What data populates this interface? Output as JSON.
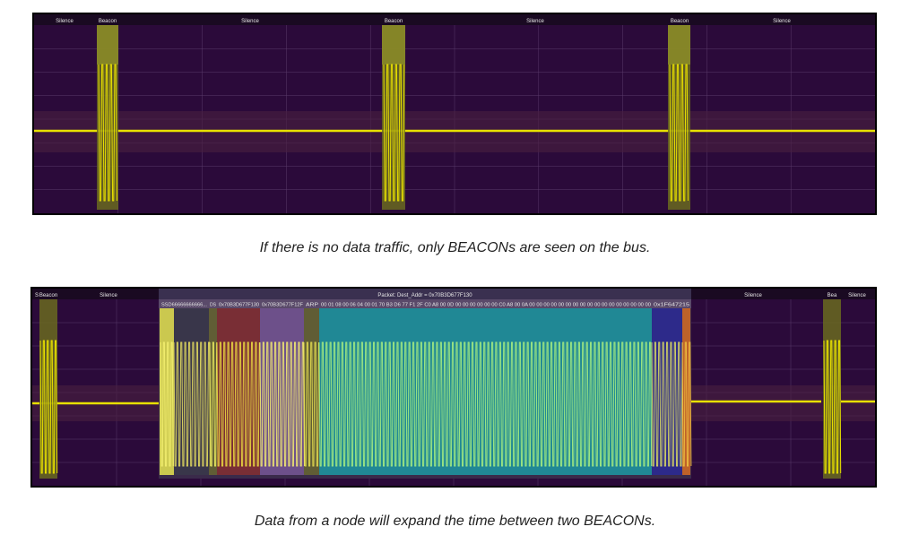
{
  "scope1": {
    "labels": [
      "Silence",
      "Beacon",
      "Silence",
      "Beacon",
      "Silence",
      "Beacon",
      "Silence"
    ]
  },
  "caption1": "If there is no data traffic, only BEACONs are seen on the bus.",
  "scope2": {
    "top_labels": [
      "S",
      "Beacon",
      "Silence",
      "Silence",
      "Bea",
      "Silence"
    ],
    "packet_label": "Packet: Dest_Addr = 0x70B3D677F130",
    "fields": [
      "SSD66666666666...",
      "DS",
      "0x70B3D677F130",
      "0x70B3D677F12F",
      "ARP",
      "00 01 08 00 06 04 00 01 70 B3 D6 77 F1 2F C0 A8 00 0D 00 00 00 00 00 00 C0 A8 00 0A 00 00 00 00 00 00 00 00 00 00 00 00 00 00 00 00 00",
      "0x1F647215"
    ]
  },
  "caption2": "Data from a node will expand the time between two BEACONs.",
  "colors": {
    "background": "#2b0a3a",
    "trace": "#e8e000",
    "grid": "#5a3a6a",
    "ssd": "#f0f050",
    "ds": "#3a3a4a",
    "dest": "#8a3030",
    "src": "#7a5a9a",
    "arp": "#6a6a30",
    "payload": "#1aa0a8",
    "crc": "#2a2a9a",
    "end": "#e07020"
  }
}
